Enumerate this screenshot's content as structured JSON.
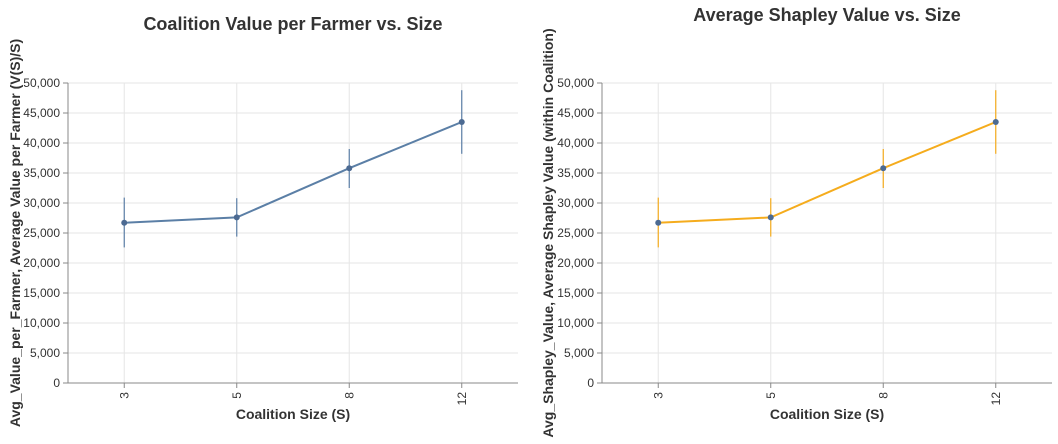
{
  "chart_data": [
    {
      "type": "line",
      "title": "Coalition Value per Farmer vs. Size",
      "xlabel": "Coalition Size (S)",
      "ylabel": "Avg_Value_per_Farmer, Average Value per Farmer (V(S)/S)",
      "categories": [
        "3",
        "5",
        "8",
        "12"
      ],
      "ylim": [
        0,
        50000
      ],
      "yticks": [
        "0",
        "5,000",
        "10,000",
        "15,000",
        "20,000",
        "25,000",
        "30,000",
        "35,000",
        "40,000",
        "45,000",
        "50,000"
      ],
      "grid": true,
      "line_color": "#5b7fa6",
      "point_color": "#4c6a92",
      "series": [
        {
          "values": [
            26700,
            27600,
            35800,
            43500
          ],
          "error_low": [
            22600,
            24400,
            32500,
            38200
          ],
          "error_high": [
            30900,
            30800,
            39000,
            48800
          ]
        }
      ]
    },
    {
      "type": "line",
      "title": "Average Shapley Value vs. Size",
      "xlabel": "Coalition Size (S)",
      "ylabel": "Avg_Shapley_Value, Average Shapley Value (within Coalition)",
      "categories": [
        "3",
        "5",
        "8",
        "12"
      ],
      "ylim": [
        0,
        50000
      ],
      "yticks": [
        "0",
        "5,000",
        "10,000",
        "15,000",
        "20,000",
        "25,000",
        "30,000",
        "35,000",
        "40,000",
        "45,000",
        "50,000"
      ],
      "grid": true,
      "line_color": "#f5ac1d",
      "point_color": "#4c6a92",
      "series": [
        {
          "values": [
            26700,
            27600,
            35800,
            43500
          ],
          "error_low": [
            22600,
            24400,
            32500,
            38200
          ],
          "error_high": [
            30900,
            30800,
            39000,
            48800
          ]
        }
      ]
    }
  ]
}
